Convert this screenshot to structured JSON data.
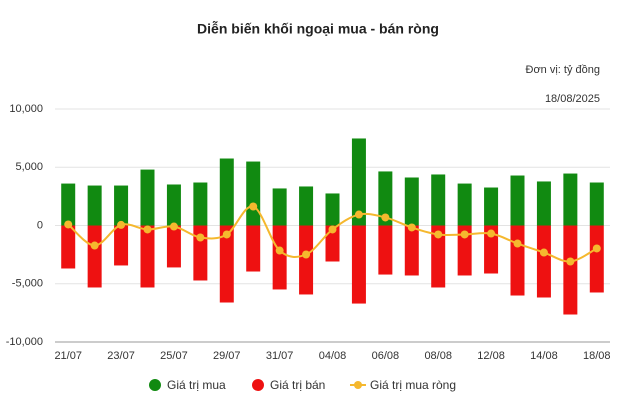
{
  "chart_data": {
    "type": "bar",
    "title": "Diễn biến khối ngoại mua - bán ròng",
    "subtitle": "Đơn vị: tỷ đồng",
    "date": "18/08/2025",
    "categories": [
      "21/07",
      null,
      "23/07",
      null,
      "25/07",
      null,
      "29/07",
      null,
      "31/07",
      null,
      "04/08",
      null,
      "06/08",
      null,
      "08/08",
      null,
      "12/08",
      null,
      "14/08",
      null,
      "18/08"
    ],
    "ylim": [
      -10000,
      10000
    ],
    "yticks": [
      {
        "value": 10000,
        "label": "10,000"
      },
      {
        "value": 5000,
        "label": "5,000"
      },
      0,
      {
        "value": -5000,
        "label": "-5,000"
      },
      {
        "value": -10000,
        "label": "-10,000"
      }
    ],
    "grid": true,
    "series": [
      {
        "name": "Giá trị mua",
        "color": "#118a11",
        "type": "bar",
        "values": [
          3600,
          3430,
          3430,
          4800,
          3520,
          3690,
          5750,
          5490,
          3180,
          3350,
          2750,
          7470,
          4640,
          4120,
          4380,
          3600,
          3260,
          4290,
          3780,
          4460,
          3690
        ]
      },
      {
        "name": "Giá trị bán",
        "color": "#ee1111",
        "type": "bar",
        "values": [
          -3690,
          -5320,
          -3430,
          -5320,
          -3600,
          -4720,
          -6610,
          -3950,
          -5490,
          -5920,
          -3090,
          -6700,
          -4210,
          -4290,
          -5320,
          -4290,
          -4120,
          -6010,
          -6180,
          -7640,
          -5750
        ]
      },
      {
        "name": "Giá trị mua ròng",
        "color": "#f5b82e",
        "type": "line",
        "values": [
          90,
          -1720,
          50,
          -340,
          -90,
          -1030,
          -770,
          1630,
          -2150,
          -2490,
          -340,
          940,
          690,
          -170,
          -770,
          -770,
          -690,
          -1550,
          -2320,
          -3090,
          -1970
        ]
      }
    ]
  }
}
